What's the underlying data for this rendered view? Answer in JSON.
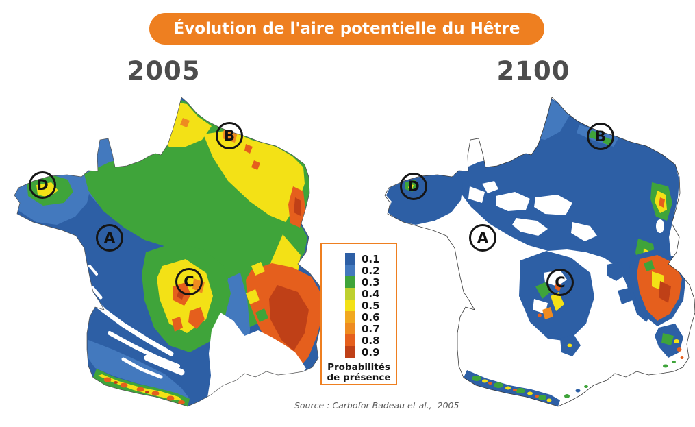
{
  "title": "Évolution de l'aire potentielle du Hêtre",
  "maps": [
    {
      "year": "2005",
      "markers": [
        {
          "label": "A"
        },
        {
          "label": "B"
        },
        {
          "label": "C"
        },
        {
          "label": "D"
        }
      ]
    },
    {
      "year": "2100",
      "markers": [
        {
          "label": "A"
        },
        {
          "label": "B"
        },
        {
          "label": "C"
        },
        {
          "label": "D"
        }
      ]
    }
  ],
  "legend": {
    "title": "Probabilités de présence",
    "entries": [
      {
        "value": "0.1",
        "color": "#2d5fa5"
      },
      {
        "value": "0.2",
        "color": "#4379be"
      },
      {
        "value": "0.3",
        "color": "#3fa43a"
      },
      {
        "value": "0.4",
        "color": "#bed02f"
      },
      {
        "value": "0.5",
        "color": "#f3e116"
      },
      {
        "value": "0.6",
        "color": "#f1a81f"
      },
      {
        "value": "0.7",
        "color": "#ee8b20"
      },
      {
        "value": "0.8",
        "color": "#e55f1d"
      },
      {
        "value": "0.9",
        "color": "#bf4017"
      }
    ]
  },
  "source": "Source : Carbofor Badeau et al.,  2005",
  "colors": {
    "banner_background": "#ee7f20",
    "banner_text": "#ffffff",
    "year_text": "#4d4d4d",
    "legend_border": "#ee7f20"
  }
}
